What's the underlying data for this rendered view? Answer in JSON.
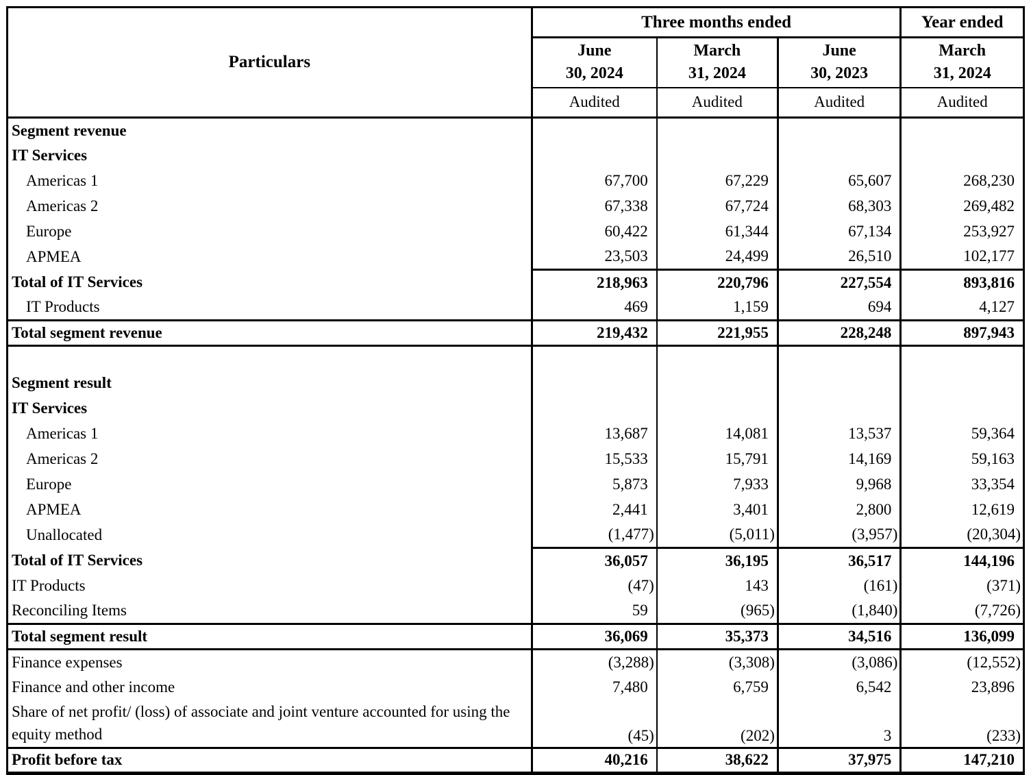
{
  "page": {
    "background_color": "#ffffff",
    "text_color": "#000000",
    "border_color": "#000000"
  },
  "table": {
    "header": {
      "particulars": "Particulars",
      "three_months_group": "Three months ended",
      "year_group": "Year ended",
      "columns": [
        {
          "month": "June",
          "date": "30, 2024",
          "audit": "Audited"
        },
        {
          "month": "March",
          "date": "31, 2024",
          "audit": "Audited"
        },
        {
          "month": "June",
          "date": "30, 2023",
          "audit": "Audited"
        },
        {
          "month": "March",
          "date": "31, 2024",
          "audit": "Audited"
        }
      ]
    },
    "rows": [
      {
        "label": "Segment revenue",
        "values": [
          "",
          "",
          "",
          ""
        ],
        "bold": true
      },
      {
        "label": "IT Services",
        "values": [
          "",
          "",
          "",
          ""
        ],
        "bold": true
      },
      {
        "label": "Americas 1",
        "values": [
          "67,700",
          "67,229",
          "65,607",
          "268,230"
        ],
        "indent": true
      },
      {
        "label": "Americas 2",
        "values": [
          "67,338",
          "67,724",
          "68,303",
          "269,482"
        ],
        "indent": true
      },
      {
        "label": "Europe",
        "values": [
          "60,422",
          "61,344",
          "67,134",
          "253,927"
        ],
        "indent": true
      },
      {
        "label": "APMEA",
        "values": [
          "23,503",
          "24,499",
          "26,510",
          "102,177"
        ],
        "indent": true
      },
      {
        "label": "Total of IT Services",
        "values": [
          "218,963",
          "220,796",
          "227,554",
          "893,816"
        ],
        "bold": true,
        "rule_above": "nums"
      },
      {
        "label": "IT Products",
        "values": [
          "469",
          "1,159",
          "694",
          "4,127"
        ],
        "indent": true
      },
      {
        "label": "Total segment revenue",
        "values": [
          "219,432",
          "221,955",
          "228,248",
          "897,943"
        ],
        "bold": true,
        "rule_above": "full",
        "rule_below": "full"
      },
      {
        "label": "",
        "values": [
          "",
          "",
          "",
          ""
        ],
        "blank": true
      },
      {
        "label": "Segment result",
        "values": [
          "",
          "",
          "",
          ""
        ],
        "bold": true
      },
      {
        "label": "IT Services",
        "values": [
          "",
          "",
          "",
          ""
        ],
        "bold": true
      },
      {
        "label": "Americas 1",
        "values": [
          "13,687",
          "14,081",
          "13,537",
          "59,364"
        ],
        "indent": true
      },
      {
        "label": "Americas 2",
        "values": [
          "15,533",
          "15,791",
          "14,169",
          "59,163"
        ],
        "indent": true
      },
      {
        "label": "Europe",
        "values": [
          "5,873",
          "7,933",
          "9,968",
          "33,354"
        ],
        "indent": true
      },
      {
        "label": "APMEA",
        "values": [
          "2,441",
          "3,401",
          "2,800",
          "12,619"
        ],
        "indent": true
      },
      {
        "label": "Unallocated",
        "values": [
          "(1,477)",
          "(5,011)",
          "(3,957)",
          "(20,304)"
        ],
        "indent": true
      },
      {
        "label": "Total of IT Services",
        "values": [
          "36,057",
          "36,195",
          "36,517",
          "144,196"
        ],
        "bold": true,
        "rule_above": "nums"
      },
      {
        "label": "IT Products",
        "values": [
          "(47)",
          "143",
          "(161)",
          "(371)"
        ]
      },
      {
        "label": "Reconciling Items",
        "values": [
          "59",
          "(965)",
          "(1,840)",
          "(7,726)"
        ]
      },
      {
        "label": "Total segment result",
        "values": [
          "36,069",
          "35,373",
          "34,516",
          "136,099"
        ],
        "bold": true,
        "rule_above": "full",
        "rule_below": "full"
      },
      {
        "label": "Finance expenses",
        "values": [
          "(3,288)",
          "(3,308)",
          "(3,086)",
          "(12,552)"
        ]
      },
      {
        "label": "Finance and other income",
        "values": [
          "7,480",
          "6,759",
          "6,542",
          "23,896"
        ]
      },
      {
        "label": "Share of net profit/ (loss) of associate and joint venture accounted for using the equity method",
        "values": [
          "(45)",
          "(202)",
          "3",
          "(233)"
        ],
        "tall": true
      },
      {
        "label": "Profit before tax",
        "values": [
          "40,216",
          "38,622",
          "37,975",
          "147,210"
        ],
        "bold": true,
        "rule_above": "full"
      }
    ]
  }
}
